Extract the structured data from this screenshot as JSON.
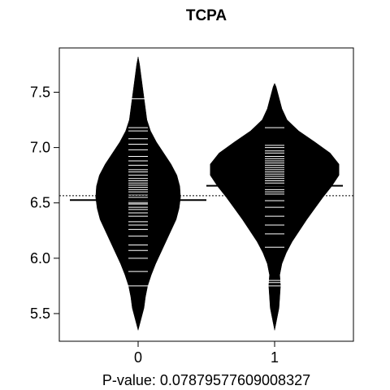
{
  "chart_data": {
    "type": "beanplot",
    "title": "TCPA",
    "xlabel": "P-value: 0.0787957760900832 7",
    "xlabel_text": "P-value: 0.07879577609008327",
    "categories": [
      "0",
      "1"
    ],
    "yticks": [
      5.5,
      6.0,
      6.5,
      7.0,
      7.5
    ],
    "ytick_labels": [
      "5.5",
      "6.0",
      "6.5",
      "7.0",
      "7.5"
    ],
    "ylim": [
      5.25,
      7.9
    ],
    "overall_mean": 6.565,
    "groups": [
      {
        "name": "0",
        "mean": 6.525,
        "range": [
          5.35,
          7.82
        ],
        "density_profile": [
          [
            5.35,
            0.0
          ],
          [
            5.45,
            0.04
          ],
          [
            5.55,
            0.08
          ],
          [
            5.65,
            0.1
          ],
          [
            5.75,
            0.13
          ],
          [
            5.85,
            0.18
          ],
          [
            5.95,
            0.24
          ],
          [
            6.05,
            0.31
          ],
          [
            6.15,
            0.38
          ],
          [
            6.25,
            0.45
          ],
          [
            6.35,
            0.52
          ],
          [
            6.45,
            0.56
          ],
          [
            6.55,
            0.58
          ],
          [
            6.65,
            0.57
          ],
          [
            6.75,
            0.53
          ],
          [
            6.85,
            0.45
          ],
          [
            6.95,
            0.35
          ],
          [
            7.05,
            0.25
          ],
          [
            7.15,
            0.17
          ],
          [
            7.25,
            0.12
          ],
          [
            7.35,
            0.1
          ],
          [
            7.45,
            0.08
          ],
          [
            7.55,
            0.06
          ],
          [
            7.65,
            0.04
          ],
          [
            7.75,
            0.02
          ],
          [
            7.82,
            0.0
          ]
        ],
        "observations": [
          5.75,
          5.88,
          6.0,
          6.07,
          6.12,
          6.2,
          6.26,
          6.3,
          6.33,
          6.38,
          6.41,
          6.44,
          6.46,
          6.49,
          6.5,
          6.52,
          6.55,
          6.57,
          6.6,
          6.62,
          6.64,
          6.66,
          6.68,
          6.7,
          6.72,
          6.75,
          6.78,
          6.8,
          6.84,
          6.88,
          6.92,
          6.98,
          7.03,
          7.08,
          7.15,
          7.18,
          7.44
        ]
      },
      {
        "name": "1",
        "mean": 6.655,
        "range": [
          5.35,
          7.58
        ],
        "density_profile": [
          [
            5.35,
            0.0
          ],
          [
            5.45,
            0.03
          ],
          [
            5.55,
            0.06
          ],
          [
            5.65,
            0.07
          ],
          [
            5.75,
            0.08
          ],
          [
            5.85,
            0.07
          ],
          [
            5.95,
            0.1
          ],
          [
            6.05,
            0.16
          ],
          [
            6.15,
            0.24
          ],
          [
            6.25,
            0.34
          ],
          [
            6.35,
            0.44
          ],
          [
            6.45,
            0.55
          ],
          [
            6.55,
            0.66
          ],
          [
            6.65,
            0.78
          ],
          [
            6.75,
            0.88
          ],
          [
            6.85,
            0.88
          ],
          [
            6.95,
            0.76
          ],
          [
            7.05,
            0.55
          ],
          [
            7.15,
            0.33
          ],
          [
            7.25,
            0.17
          ],
          [
            7.35,
            0.1
          ],
          [
            7.45,
            0.06
          ],
          [
            7.55,
            0.02
          ],
          [
            7.58,
            0.0
          ]
        ],
        "observations": [
          5.75,
          5.78,
          5.8,
          6.1,
          6.22,
          6.3,
          6.38,
          6.46,
          6.52,
          6.58,
          6.6,
          6.62,
          6.65,
          6.68,
          6.7,
          6.72,
          6.74,
          6.76,
          6.78,
          6.8,
          6.82,
          6.84,
          6.86,
          6.88,
          6.9,
          6.92,
          6.95,
          6.97,
          7.0,
          7.02,
          7.18
        ]
      }
    ],
    "grid": false,
    "legend": "none"
  }
}
